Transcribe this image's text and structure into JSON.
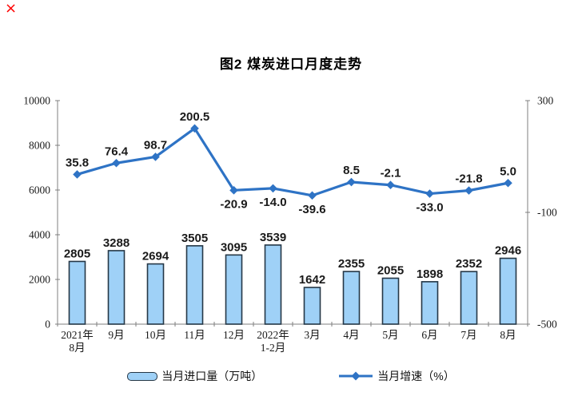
{
  "page": {
    "background": "#ffffff"
  },
  "broken_image": {
    "symbol": "×",
    "color": "#fe0000"
  },
  "chart_data": {
    "type": "bar",
    "subtype": "bar+line-combo",
    "title": "图2 煤炭进口月度走势",
    "categories": [
      "2021年\n8月",
      "9月",
      "10月",
      "11月",
      "12月",
      "2022年\n1-2月",
      "3月",
      "4月",
      "5月",
      "6月",
      "7月",
      "8月"
    ],
    "series": [
      {
        "name": "当月进口量（万吨）",
        "type": "bar",
        "axis": "left",
        "values": [
          2805,
          3288,
          2694,
          3505,
          3095,
          3539,
          1642,
          2355,
          2055,
          1898,
          2352,
          2946
        ],
        "value_labels": [
          "2805",
          "3288",
          "2694",
          "3505",
          "3095",
          "3539",
          "1642",
          "2355",
          "2055",
          "1898",
          "2352",
          "2946"
        ]
      },
      {
        "name": "当月增速（%）",
        "type": "line",
        "axis": "right",
        "values": [
          35.8,
          76.4,
          98.7,
          200.5,
          -20.9,
          -14.0,
          -39.6,
          8.5,
          -2.1,
          -33.0,
          -21.8,
          5.0
        ],
        "value_labels": [
          "35.8",
          "76.4",
          "98.7",
          "200.5",
          "-20.9",
          "-14.0",
          "-39.6",
          "8.5",
          "-2.1",
          "-33.0",
          "-21.8",
          "5.0"
        ],
        "label_positions": [
          "above",
          "above",
          "above",
          "above",
          "below",
          "below",
          "below",
          "above",
          "above",
          "below",
          "above",
          "above"
        ]
      }
    ],
    "left_axis": {
      "min": 0,
      "max": 10000,
      "tick_interval": 2000,
      "tick_labels": [
        "0",
        "2000",
        "4000",
        "6000",
        "8000",
        "10000"
      ],
      "tick_values": [
        0,
        2000,
        4000,
        6000,
        8000,
        10000
      ]
    },
    "right_axis": {
      "min": -500,
      "max": 300,
      "tick_labels": [
        "300",
        "-100",
        "-500"
      ],
      "tick_values": [
        300,
        -100,
        -500
      ]
    },
    "xlabel": "",
    "ylabel": "",
    "grid": false,
    "legend_position": "bottom",
    "legend": [
      {
        "label": "当月进口量（万吨）",
        "swatch": "bar"
      },
      {
        "label": "当月增速（%）",
        "swatch": "line"
      }
    ],
    "colors": {
      "bar_fill": "#9FD1F7",
      "bar_border": "#253746",
      "line": "#2E73C5",
      "axis": "#7F7F7F",
      "text": "#1a1a1a"
    }
  }
}
